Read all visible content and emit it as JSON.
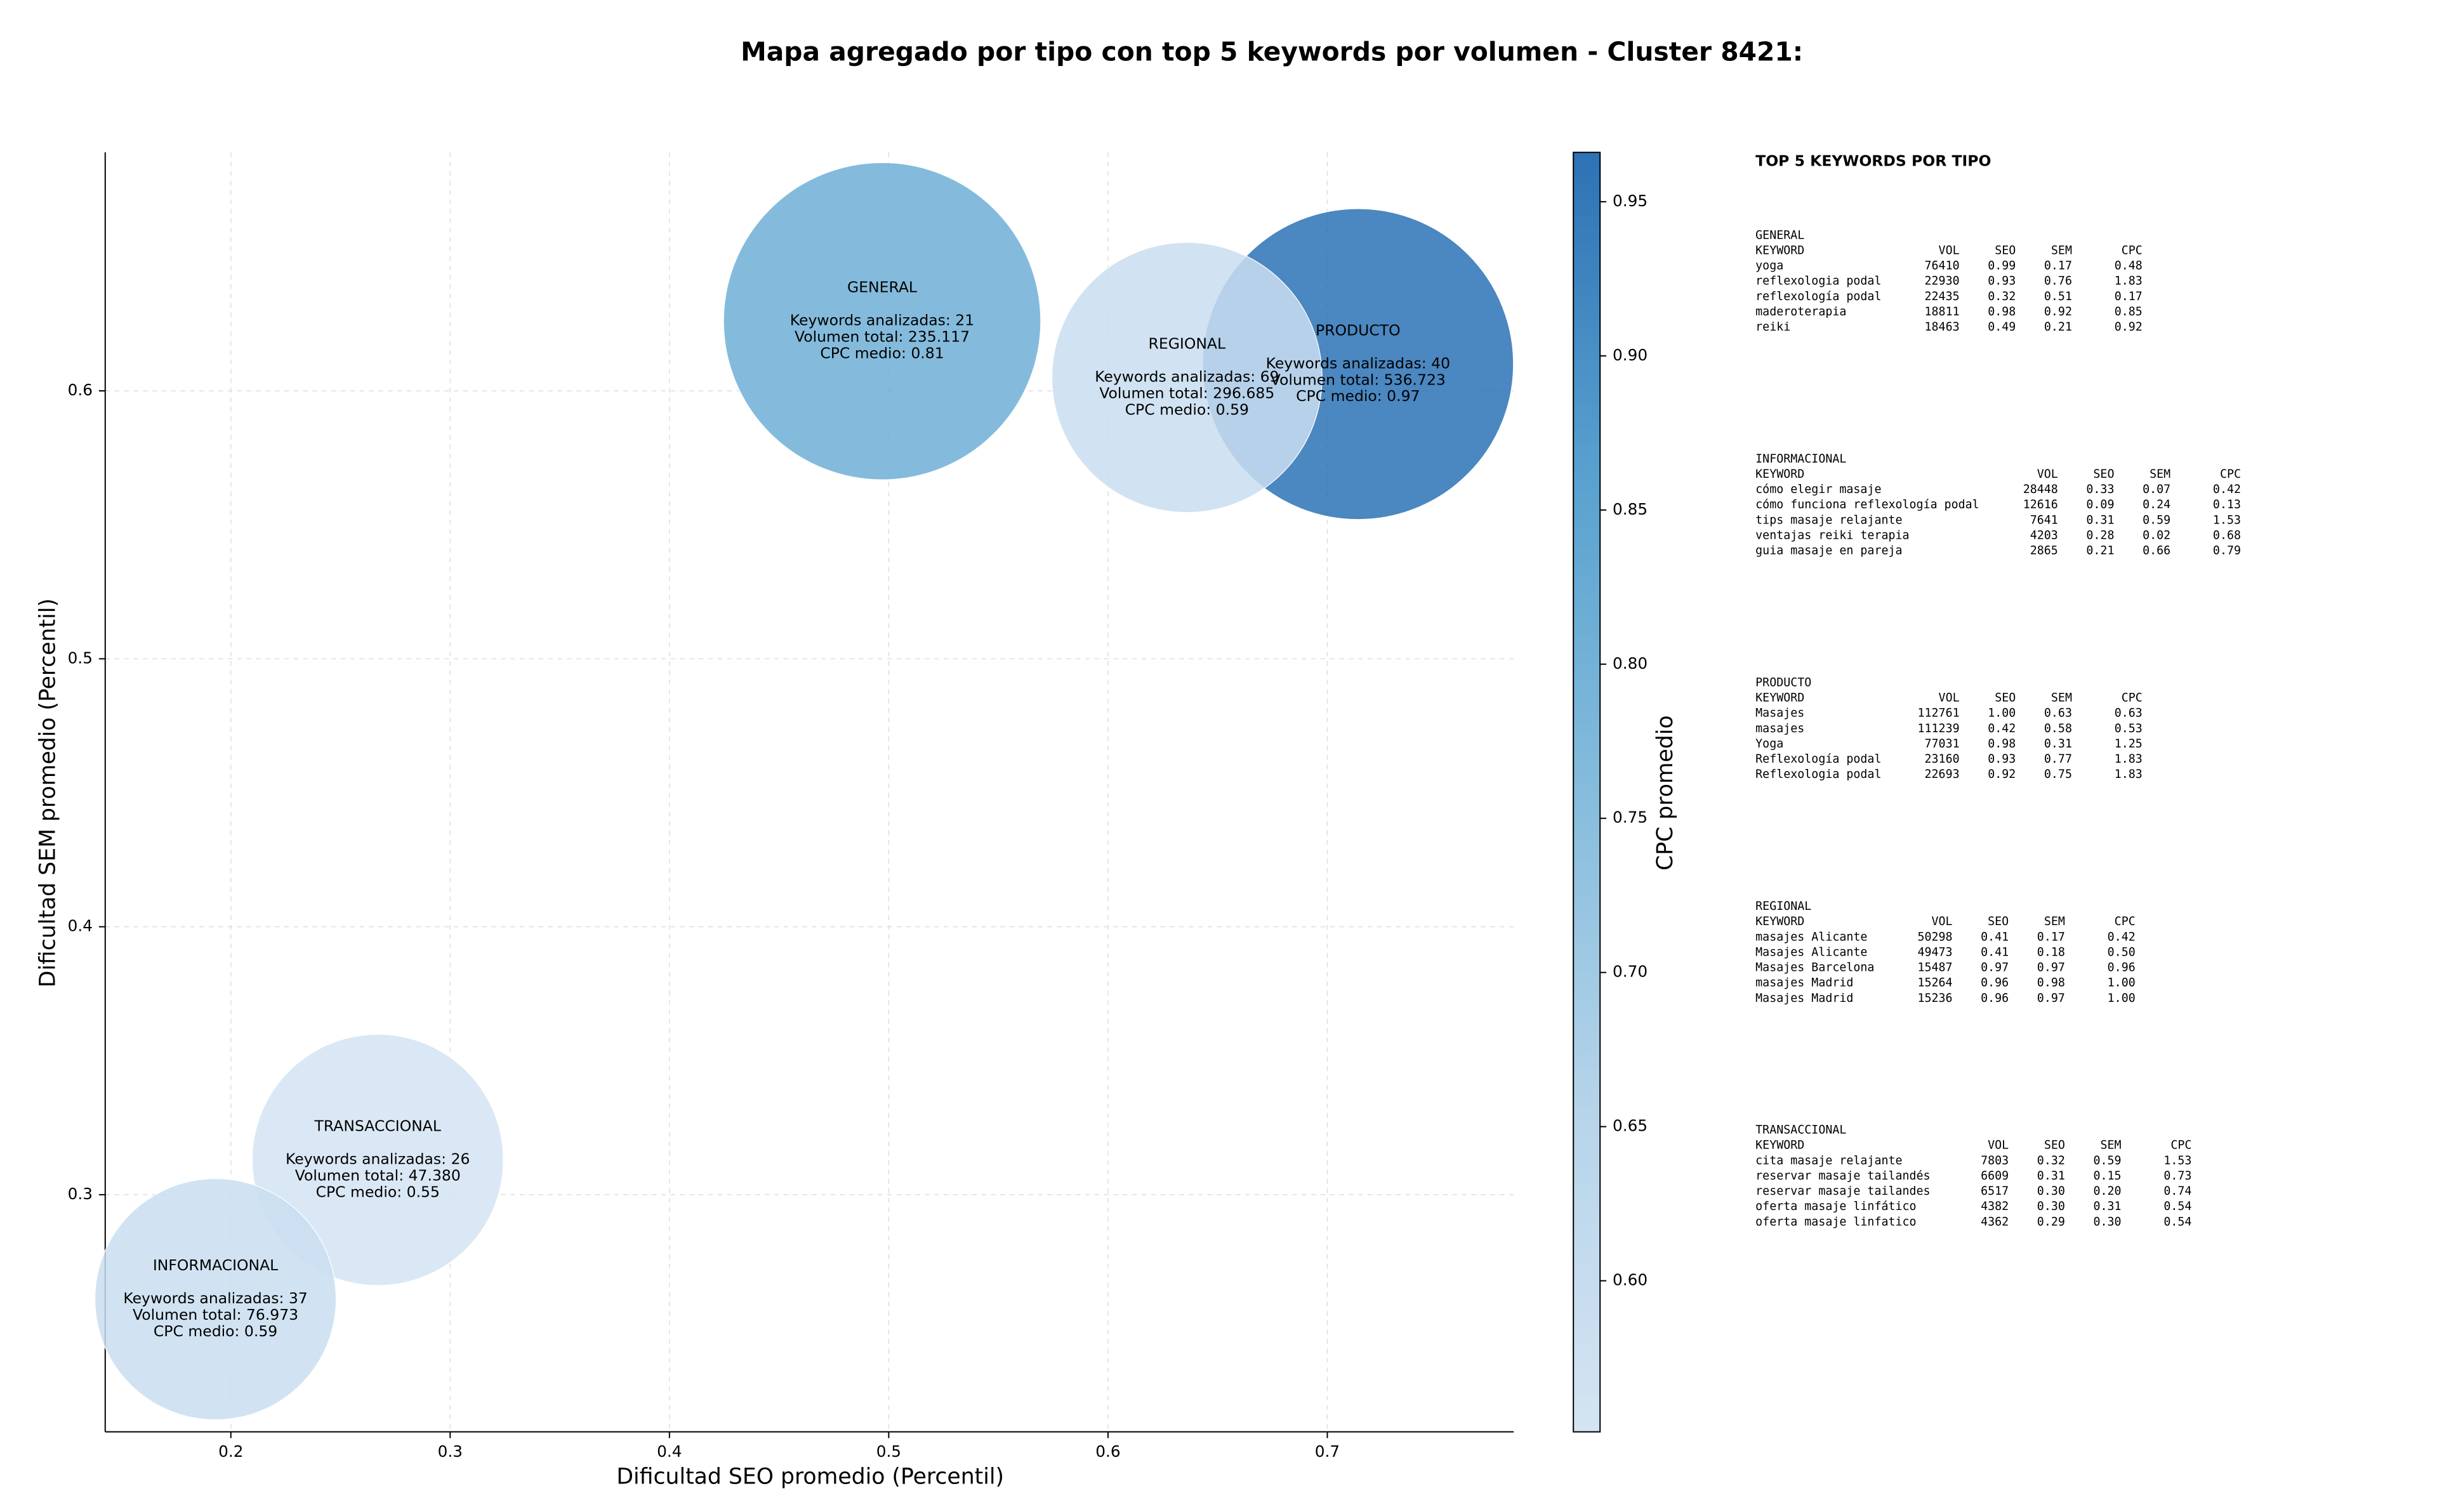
{
  "chart_data": {
    "type": "bubble",
    "title": "Mapa agregado por tipo con top 5 keywords por volumen - Cluster 8421:",
    "xlabel": "Dificultad SEO promedio (Percentil)",
    "ylabel": "Dificultad SEM promedio (Percentil)",
    "xlim": [
      0.1427,
      0.785
    ],
    "ylim": [
      0.2115,
      0.689
    ],
    "xticks": [
      0.2,
      0.3,
      0.4,
      0.5,
      0.6,
      0.7
    ],
    "yticks": [
      0.3,
      0.4,
      0.5,
      0.6
    ],
    "grid": true,
    "colorbar_label": "CPC promedio",
    "clim": [
      0.551,
      0.966
    ],
    "cticks": [
      {
        "value": 0.6,
        "label": "0.60"
      },
      0.65,
      {
        "value": 0.7,
        "label": "0.70"
      },
      0.75,
      {
        "value": 0.8,
        "label": "0.80"
      },
      0.85,
      {
        "value": 0.9,
        "label": "0.90"
      },
      0.95
    ],
    "colormap": [
      "#d4e4f3",
      "#b6d4ea",
      "#85bcdc",
      "#58a1cf",
      "#2c72b5"
    ],
    "series": [
      {
        "name": "GENERAL",
        "x": 0.497,
        "y": 0.626,
        "size": 10200,
        "cpc": 0.81,
        "labels": [
          "Keywords analizadas: 21",
          "Volumen total: 235.117",
          "CPC medio: 0.81"
        ]
      },
      {
        "name": "PRODUCTO",
        "x": 0.714,
        "y": 0.61,
        "size": 9800,
        "cpc": 0.97,
        "labels": [
          "Keywords analizadas: 40",
          "Volumen total: 536.723",
          "CPC medio: 0.97"
        ]
      },
      {
        "name": "REGIONAL",
        "x": 0.636,
        "y": 0.605,
        "size": 7400,
        "cpc": 0.59,
        "labels": [
          "Keywords analizadas: 69",
          "Volumen total: 296.685",
          "CPC medio: 0.59"
        ]
      },
      {
        "name": "TRANSACCIONAL",
        "x": 0.267,
        "y": 0.313,
        "size": 6400,
        "cpc": 0.55,
        "labels": [
          "Keywords analizadas: 26",
          "Volumen total: 47.380",
          "CPC medio: 0.55"
        ]
      },
      {
        "name": "INFORMACIONAL",
        "x": 0.193,
        "y": 0.261,
        "size": 5900,
        "cpc": 0.59,
        "labels": [
          "Keywords analizadas: 37",
          "Volumen total: 76.973",
          "CPC medio: 0.59"
        ]
      }
    ]
  },
  "side_panel": {
    "title": "TOP 5 KEYWORDS POR TIPO",
    "groups": [
      {
        "name": "GENERAL",
        "header": [
          "KEYWORD",
          "VOL",
          "SEO",
          "SEM",
          "CPC"
        ],
        "rows": [
          [
            "yoga",
            "76410",
            "0.99",
            "0.17",
            "0.48"
          ],
          [
            "reflexologia podal",
            "22930",
            "0.93",
            "0.76",
            "1.83"
          ],
          [
            "reflexología podal",
            "22435",
            "0.32",
            "0.51",
            "0.17"
          ],
          [
            "maderoterapia",
            "18811",
            "0.98",
            "0.92",
            "0.85"
          ],
          [
            "reiki",
            "18463",
            "0.49",
            "0.21",
            "0.92"
          ]
        ]
      },
      {
        "name": "INFORMACIONAL",
        "header": [
          "KEYWORD",
          "VOL",
          "SEO",
          "SEM",
          "CPC"
        ],
        "rows": [
          [
            "cómo elegir masaje",
            "28448",
            "0.33",
            "0.07",
            "0.42"
          ],
          [
            "cómo funciona reflexología podal",
            "12616",
            "0.09",
            "0.24",
            "0.13"
          ],
          [
            "tips masaje relajante",
            "7641",
            "0.31",
            "0.59",
            "1.53"
          ],
          [
            "ventajas reiki terapia",
            "4203",
            "0.28",
            "0.02",
            "0.68"
          ],
          [
            "guia masaje en pareja",
            "2865",
            "0.21",
            "0.66",
            "0.79"
          ]
        ]
      },
      {
        "name": "PRODUCTO",
        "header": [
          "KEYWORD",
          "VOL",
          "SEO",
          "SEM",
          "CPC"
        ],
        "rows": [
          [
            "Masajes",
            "112761",
            "1.00",
            "0.63",
            "0.63"
          ],
          [
            "masajes",
            "111239",
            "0.42",
            "0.58",
            "0.53"
          ],
          [
            "Yoga",
            "77031",
            "0.98",
            "0.31",
            "1.25"
          ],
          [
            "Reflexología podal",
            "23160",
            "0.93",
            "0.77",
            "1.83"
          ],
          [
            "Reflexologia podal",
            "22693",
            "0.92",
            "0.75",
            "1.83"
          ]
        ]
      },
      {
        "name": "REGIONAL",
        "header": [
          "KEYWORD",
          "VOL",
          "SEO",
          "SEM",
          "CPC"
        ],
        "rows": [
          [
            "masajes Alicante",
            "50298",
            "0.41",
            "0.17",
            "0.42"
          ],
          [
            "Masajes Alicante",
            "49473",
            "0.41",
            "0.18",
            "0.50"
          ],
          [
            "Masajes Barcelona",
            "15487",
            "0.97",
            "0.97",
            "0.96"
          ],
          [
            "masajes Madrid",
            "15264",
            "0.96",
            "0.98",
            "1.00"
          ],
          [
            "Masajes Madrid",
            "15236",
            "0.96",
            "0.97",
            "1.00"
          ]
        ]
      },
      {
        "name": "TRANSACCIONAL",
        "header": [
          "KEYWORD",
          "VOL",
          "SEO",
          "SEM",
          "CPC"
        ],
        "rows": [
          [
            "cita masaje relajante",
            "7803",
            "0.32",
            "0.59",
            "1.53"
          ],
          [
            "reservar masaje tailandés",
            "6609",
            "0.31",
            "0.15",
            "0.73"
          ],
          [
            "reservar masaje tailandes",
            "6517",
            "0.30",
            "0.20",
            "0.74"
          ],
          [
            "oferta masaje linfático",
            "4382",
            "0.30",
            "0.31",
            "0.54"
          ],
          [
            "oferta masaje linfatico",
            "4362",
            "0.29",
            "0.30",
            "0.54"
          ]
        ]
      }
    ]
  }
}
